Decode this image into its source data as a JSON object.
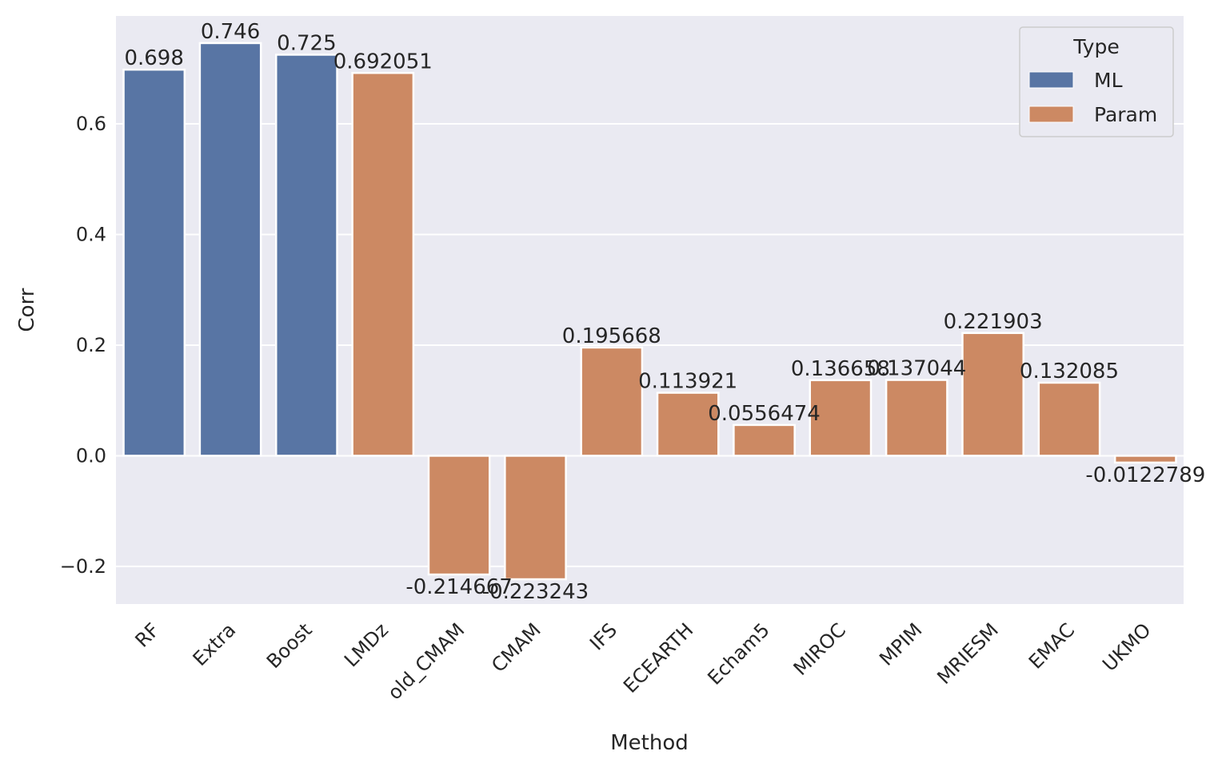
{
  "chart_data": {
    "type": "bar",
    "xlabel": "Method",
    "ylabel": "Corr",
    "ylim": [
      -0.268,
      0.795
    ],
    "yticks": [
      -0.2,
      0.0,
      0.2,
      0.4,
      0.6
    ],
    "ytick_labels": [
      "−0.2",
      "0.0",
      "0.2",
      "0.4",
      "0.6"
    ],
    "grid": true,
    "legend": {
      "title": "Type",
      "position": "top-right",
      "entries": [
        {
          "label": "ML",
          "color": "#5875a4"
        },
        {
          "label": "Param",
          "color": "#cc8963"
        }
      ]
    },
    "categories": [
      "RF",
      "Extra",
      "Boost",
      "LMDz",
      "old_CMAM",
      "CMAM",
      "IFS",
      "ECEARTH",
      "Echam5",
      "MIROC",
      "MPIM",
      "MRIESM",
      "EMAC",
      "UKMO"
    ],
    "values": [
      0.698,
      0.746,
      0.725,
      0.692051,
      -0.214667,
      -0.223243,
      0.195668,
      0.113921,
      0.0556474,
      0.136658,
      0.137044,
      0.221903,
      0.132085,
      -0.0122789
    ],
    "types": [
      "ML",
      "ML",
      "ML",
      "Param",
      "Param",
      "Param",
      "Param",
      "Param",
      "Param",
      "Param",
      "Param",
      "Param",
      "Param",
      "Param"
    ],
    "labels": [
      "0.698",
      "0.746",
      "0.725",
      "0.692051",
      "-0.214667",
      "-0.223243",
      "0.195668",
      "0.113921",
      "0.0556474",
      "0.136658",
      "0.137044",
      "0.221903",
      "0.132085",
      "-0.0122789"
    ],
    "colors": {
      "ML": "#5875a4",
      "Param": "#cc8963"
    },
    "background": "#eaeaf2"
  }
}
